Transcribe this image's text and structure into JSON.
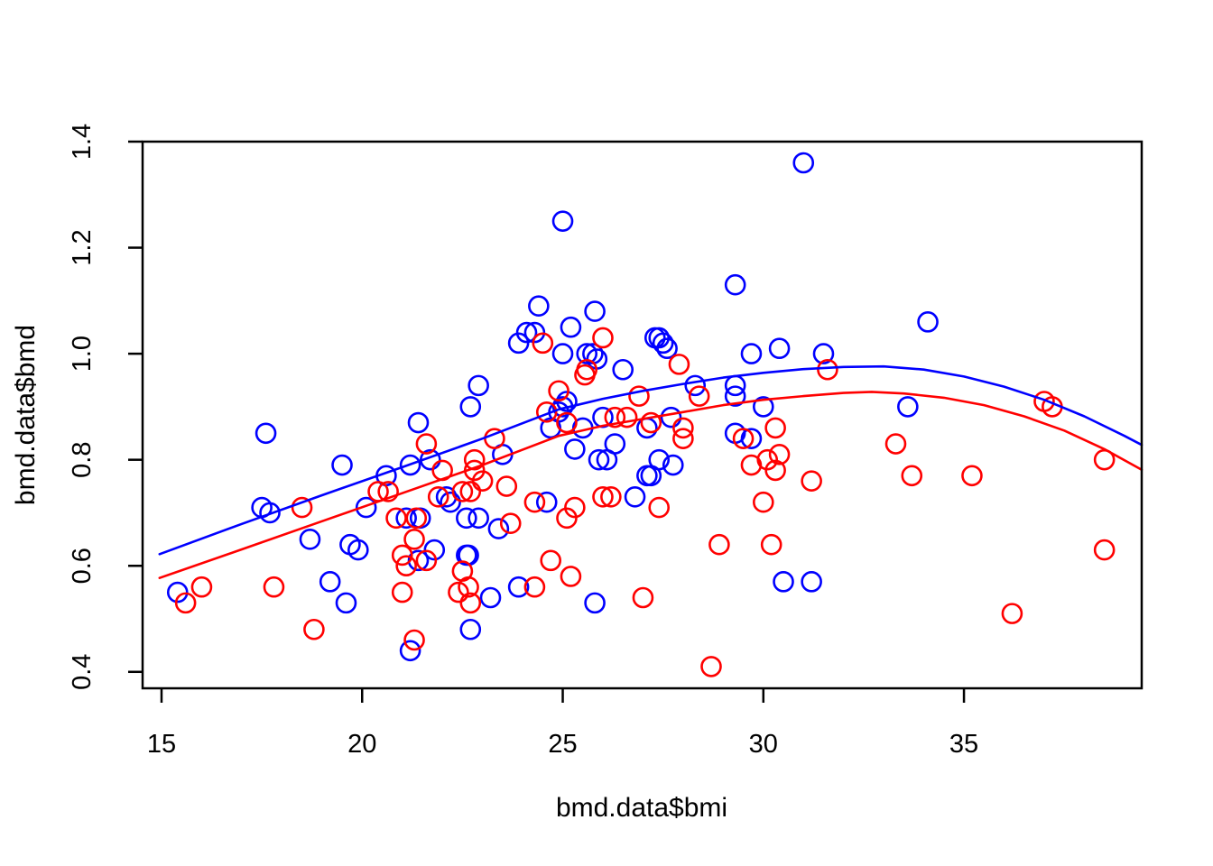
{
  "figure": {
    "background": "#ffffff",
    "border_color": "#000000",
    "blue": "#0000ff",
    "red": "#ff0000"
  },
  "chart_data": {
    "type": "scatter",
    "title": "",
    "xlabel": "bmd.data$bmi",
    "ylabel": "bmd.data$bmd",
    "x_ticks": [
      15,
      20,
      25,
      30,
      35
    ],
    "y_ticks": [
      0.4,
      0.6,
      0.8,
      1.0,
      1.2,
      1.4
    ],
    "xlim": [
      14.528,
      39.43
    ],
    "ylim": [
      0.369,
      1.4
    ],
    "grid": false,
    "legend": "none",
    "series": [
      {
        "name": "group-blue",
        "color": "#0000ff",
        "marker": "open-circle",
        "points": [
          [
            25.0,
            1.25
          ],
          [
            31.0,
            1.36
          ],
          [
            29.3,
            1.13
          ],
          [
            34.1,
            1.06
          ],
          [
            24.4,
            1.09
          ],
          [
            25.8,
            1.08
          ],
          [
            25.2,
            1.05
          ],
          [
            23.9,
            1.02
          ],
          [
            24.1,
            1.04
          ],
          [
            24.3,
            1.04
          ],
          [
            25.0,
            1.0
          ],
          [
            25.6,
            1.0
          ],
          [
            25.75,
            1.0
          ],
          [
            25.85,
            0.99
          ],
          [
            26.5,
            0.97
          ],
          [
            27.3,
            1.03
          ],
          [
            27.4,
            1.03
          ],
          [
            27.5,
            1.02
          ],
          [
            27.6,
            1.01
          ],
          [
            29.7,
            1.0
          ],
          [
            30.4,
            1.01
          ],
          [
            31.5,
            1.0
          ],
          [
            22.9,
            0.94
          ],
          [
            22.7,
            0.9
          ],
          [
            28.3,
            0.94
          ],
          [
            29.3,
            0.94
          ],
          [
            29.3,
            0.92
          ],
          [
            30.0,
            0.9
          ],
          [
            33.6,
            0.9
          ],
          [
            17.6,
            0.85
          ],
          [
            19.5,
            0.79
          ],
          [
            25.1,
            0.91
          ],
          [
            25.0,
            0.9
          ],
          [
            24.9,
            0.89
          ],
          [
            24.7,
            0.86
          ],
          [
            25.5,
            0.86
          ],
          [
            26.0,
            0.88
          ],
          [
            25.3,
            0.82
          ],
          [
            26.3,
            0.83
          ],
          [
            25.9,
            0.8
          ],
          [
            26.1,
            0.8
          ],
          [
            21.4,
            0.87
          ],
          [
            21.2,
            0.79
          ],
          [
            21.7,
            0.8
          ],
          [
            20.6,
            0.77
          ],
          [
            23.5,
            0.81
          ],
          [
            17.5,
            0.71
          ],
          [
            17.7,
            0.7
          ],
          [
            20.1,
            0.71
          ],
          [
            22.1,
            0.73
          ],
          [
            22.2,
            0.72
          ],
          [
            24.6,
            0.72
          ],
          [
            26.8,
            0.73
          ],
          [
            27.4,
            0.8
          ],
          [
            27.75,
            0.79
          ],
          [
            27.1,
            0.77
          ],
          [
            27.2,
            0.77
          ],
          [
            29.3,
            0.85
          ],
          [
            29.7,
            0.84
          ],
          [
            27.7,
            0.88
          ],
          [
            27.1,
            0.86
          ],
          [
            18.7,
            0.65
          ],
          [
            19.7,
            0.64
          ],
          [
            19.9,
            0.63
          ],
          [
            21.1,
            0.69
          ],
          [
            21.45,
            0.69
          ],
          [
            22.6,
            0.69
          ],
          [
            22.9,
            0.69
          ],
          [
            23.4,
            0.67
          ],
          [
            21.8,
            0.63
          ],
          [
            21.4,
            0.61
          ],
          [
            22.6,
            0.62
          ],
          [
            22.65,
            0.62
          ],
          [
            23.2,
            0.54
          ],
          [
            23.9,
            0.56
          ],
          [
            15.4,
            0.55
          ],
          [
            19.2,
            0.57
          ],
          [
            19.6,
            0.53
          ],
          [
            25.8,
            0.53
          ],
          [
            30.5,
            0.57
          ],
          [
            31.2,
            0.57
          ],
          [
            22.7,
            0.48
          ],
          [
            21.2,
            0.44
          ]
        ]
      },
      {
        "name": "group-red",
        "color": "#ff0000",
        "marker": "open-circle",
        "points": [
          [
            24.5,
            1.02
          ],
          [
            26.0,
            1.03
          ],
          [
            25.6,
            0.97
          ],
          [
            25.55,
            0.96
          ],
          [
            24.9,
            0.93
          ],
          [
            24.6,
            0.89
          ],
          [
            25.1,
            0.87
          ],
          [
            27.9,
            0.98
          ],
          [
            31.6,
            0.97
          ],
          [
            28.4,
            0.92
          ],
          [
            26.9,
            0.92
          ],
          [
            37.0,
            0.91
          ],
          [
            37.2,
            0.9
          ],
          [
            18.5,
            0.71
          ],
          [
            20.4,
            0.74
          ],
          [
            20.65,
            0.74
          ],
          [
            22.0,
            0.78
          ],
          [
            21.6,
            0.83
          ],
          [
            23.3,
            0.84
          ],
          [
            22.8,
            0.8
          ],
          [
            22.8,
            0.78
          ],
          [
            23.0,
            0.76
          ],
          [
            22.5,
            0.74
          ],
          [
            22.7,
            0.74
          ],
          [
            21.9,
            0.73
          ],
          [
            23.6,
            0.75
          ],
          [
            23.7,
            0.68
          ],
          [
            24.3,
            0.72
          ],
          [
            25.3,
            0.71
          ],
          [
            25.1,
            0.69
          ],
          [
            26.0,
            0.73
          ],
          [
            26.2,
            0.73
          ],
          [
            26.3,
            0.88
          ],
          [
            26.6,
            0.88
          ],
          [
            27.2,
            0.87
          ],
          [
            28.0,
            0.86
          ],
          [
            28.0,
            0.84
          ],
          [
            29.5,
            0.84
          ],
          [
            30.3,
            0.86
          ],
          [
            30.4,
            0.81
          ],
          [
            30.1,
            0.8
          ],
          [
            29.7,
            0.79
          ],
          [
            30.3,
            0.78
          ],
          [
            31.2,
            0.76
          ],
          [
            27.4,
            0.71
          ],
          [
            30.0,
            0.72
          ],
          [
            28.9,
            0.64
          ],
          [
            30.2,
            0.64
          ],
          [
            33.3,
            0.83
          ],
          [
            33.7,
            0.77
          ],
          [
            35.2,
            0.77
          ],
          [
            38.5,
            0.8
          ],
          [
            38.5,
            0.63
          ],
          [
            36.2,
            0.51
          ],
          [
            16.0,
            0.56
          ],
          [
            15.6,
            0.53
          ],
          [
            17.8,
            0.56
          ],
          [
            18.8,
            0.48
          ],
          [
            20.85,
            0.69
          ],
          [
            21.35,
            0.69
          ],
          [
            21.3,
            0.65
          ],
          [
            21.0,
            0.62
          ],
          [
            21.1,
            0.6
          ],
          [
            21.6,
            0.61
          ],
          [
            22.5,
            0.59
          ],
          [
            22.4,
            0.55
          ],
          [
            22.65,
            0.56
          ],
          [
            22.7,
            0.53
          ],
          [
            21.0,
            0.55
          ],
          [
            24.3,
            0.56
          ],
          [
            24.7,
            0.61
          ],
          [
            25.2,
            0.58
          ],
          [
            27.0,
            0.54
          ],
          [
            21.3,
            0.46
          ],
          [
            28.7,
            0.41
          ]
        ]
      }
    ],
    "curves": [
      {
        "name": "fit-blue",
        "color": "#0000ff",
        "points": [
          [
            14.95,
            0.622
          ],
          [
            17,
            0.679
          ],
          [
            19,
            0.733
          ],
          [
            21,
            0.786
          ],
          [
            23,
            0.84
          ],
          [
            24.9,
            0.895
          ],
          [
            26,
            0.915
          ],
          [
            27,
            0.93
          ],
          [
            28,
            0.943
          ],
          [
            29,
            0.955
          ],
          [
            30,
            0.964
          ],
          [
            31,
            0.971
          ],
          [
            32,
            0.975
          ],
          [
            33,
            0.976
          ],
          [
            34,
            0.97
          ],
          [
            35,
            0.957
          ],
          [
            36,
            0.938
          ],
          [
            37,
            0.913
          ],
          [
            38,
            0.882
          ],
          [
            39,
            0.845
          ],
          [
            39.43,
            0.828
          ]
        ]
      },
      {
        "name": "fit-red",
        "color": "#ff0000",
        "points": [
          [
            14.95,
            0.577
          ],
          [
            17,
            0.631
          ],
          [
            19,
            0.684
          ],
          [
            21,
            0.737
          ],
          [
            23,
            0.79
          ],
          [
            24.9,
            0.845
          ],
          [
            26,
            0.864
          ],
          [
            27,
            0.877
          ],
          [
            28,
            0.89
          ],
          [
            29,
            0.903
          ],
          [
            30,
            0.913
          ],
          [
            31,
            0.92
          ],
          [
            32,
            0.926
          ],
          [
            32.7,
            0.928
          ],
          [
            33.5,
            0.925
          ],
          [
            34.5,
            0.917
          ],
          [
            35.5,
            0.903
          ],
          [
            36.5,
            0.882
          ],
          [
            37.5,
            0.855
          ],
          [
            38.5,
            0.82
          ],
          [
            39.43,
            0.781
          ]
        ]
      }
    ]
  }
}
